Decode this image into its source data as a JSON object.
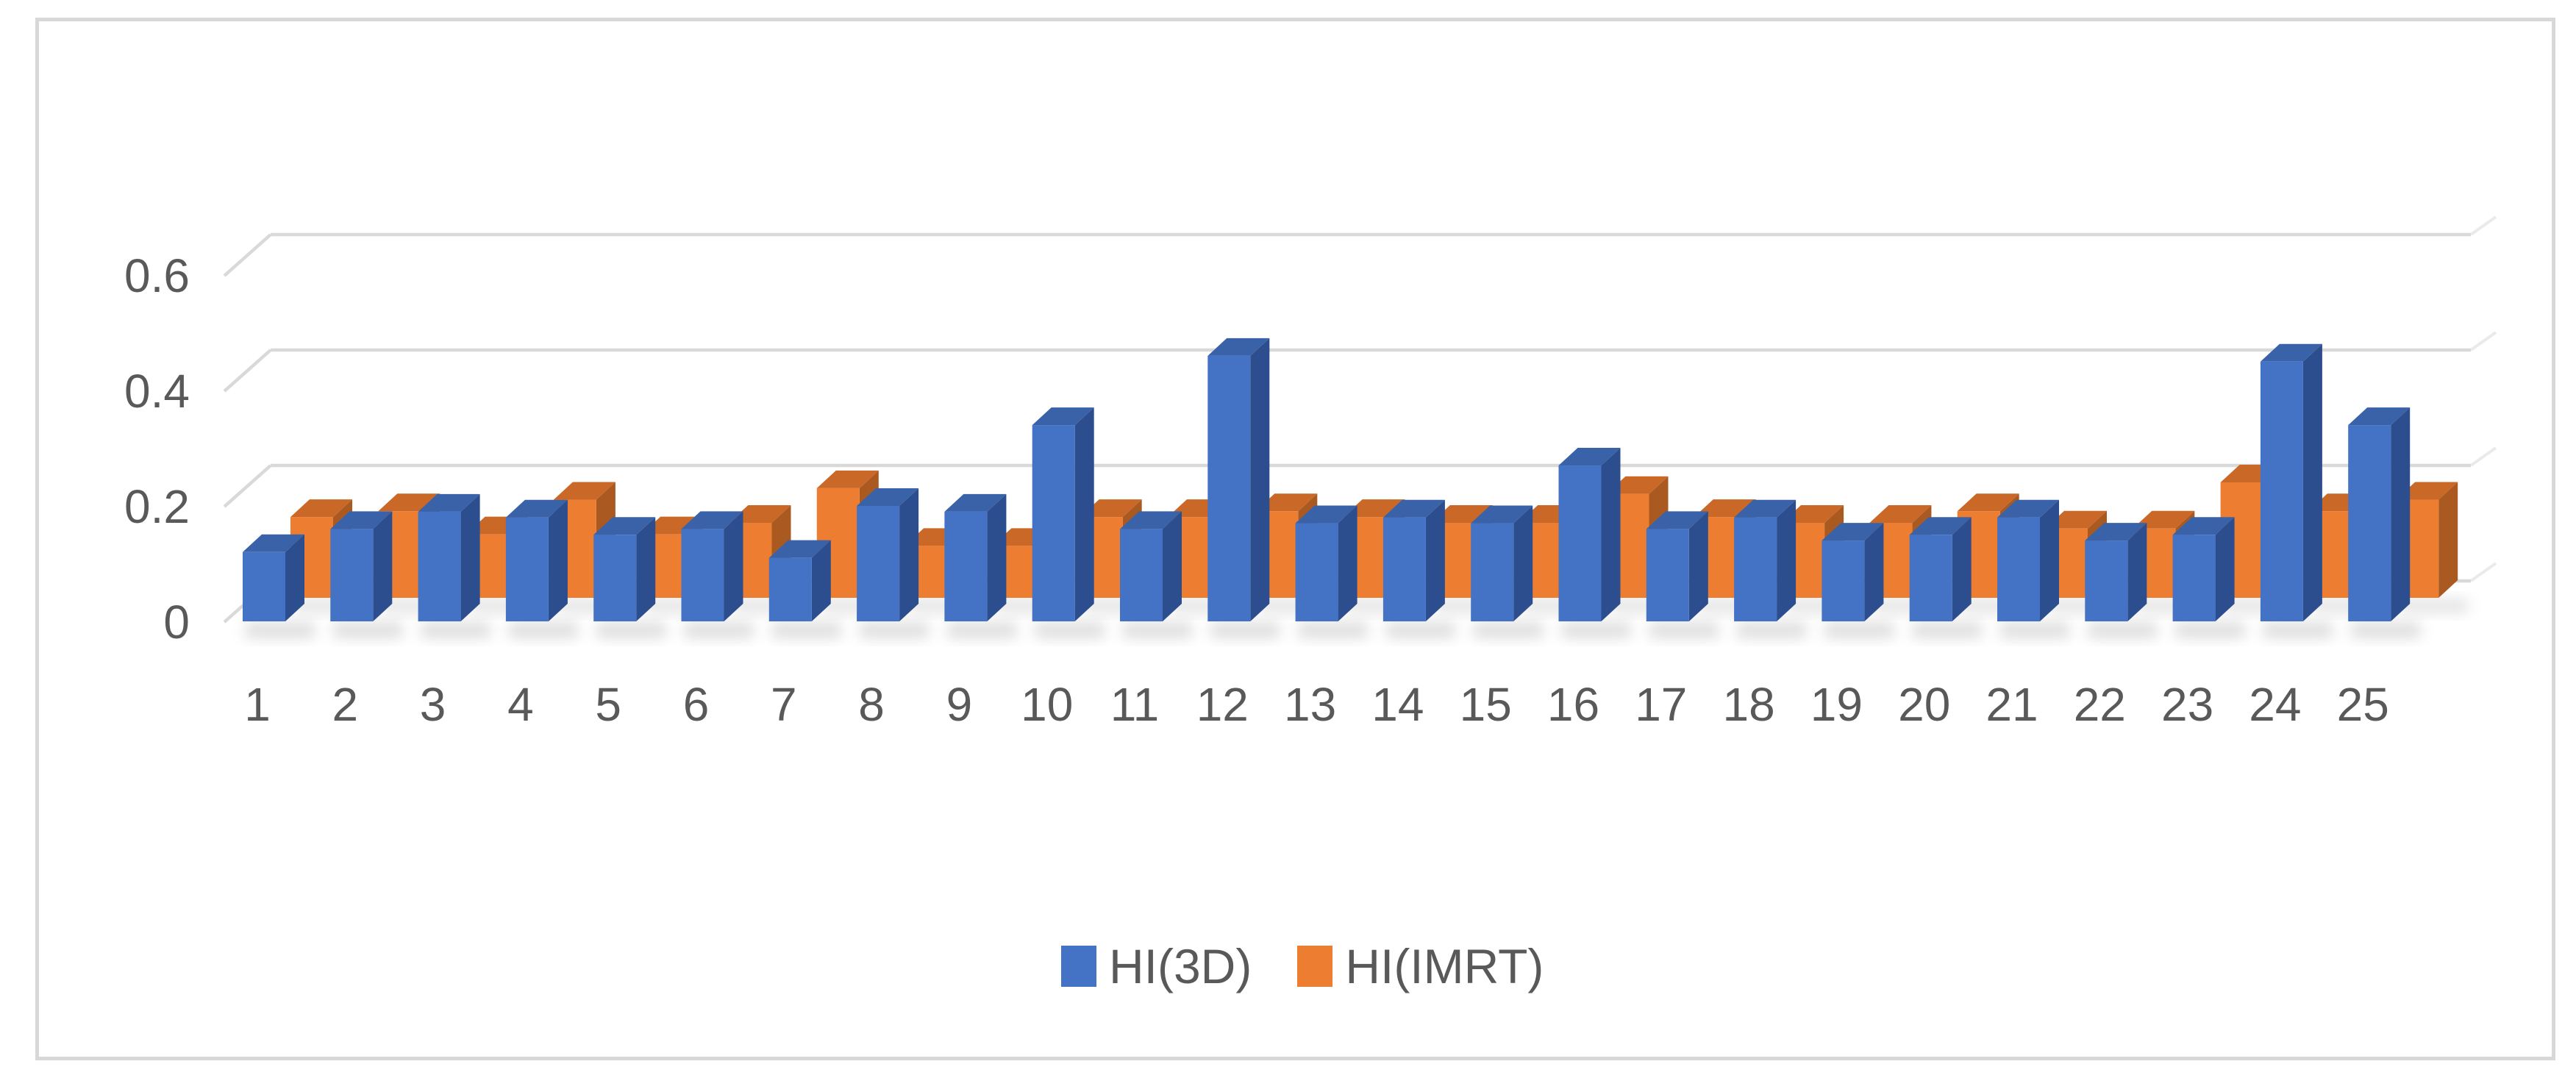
{
  "chart_data": {
    "type": "bar",
    "subtype": "3d_clustered_column",
    "title": "",
    "xlabel": "",
    "ylabel": "",
    "categories": [
      "1",
      "2",
      "3",
      "4",
      "5",
      "6",
      "7",
      "8",
      "9",
      "10",
      "11",
      "12",
      "13",
      "14",
      "15",
      "16",
      "17",
      "18",
      "19",
      "20",
      "21",
      "22",
      "23",
      "24",
      "25"
    ],
    "series": [
      {
        "name": "HI(3D)",
        "values": [
          0.12,
          0.16,
          0.19,
          0.18,
          0.15,
          0.16,
          0.11,
          0.2,
          0.19,
          0.34,
          0.16,
          0.46,
          0.17,
          0.18,
          0.17,
          0.27,
          0.16,
          0.18,
          0.14,
          0.15,
          0.18,
          0.14,
          0.15,
          0.45,
          0.34
        ],
        "colors": {
          "front": "#4472c4",
          "side": "#2c4d8e",
          "top": "#3a62a8"
        }
      },
      {
        "name": "HI(IMRT)",
        "values": [
          0.14,
          0.15,
          0.11,
          0.17,
          0.11,
          0.13,
          0.19,
          0.09,
          0.09,
          0.14,
          0.14,
          0.15,
          0.14,
          0.13,
          0.13,
          0.18,
          0.14,
          0.13,
          0.13,
          0.15,
          0.12,
          0.12,
          0.2,
          0.15,
          0.17
        ],
        "colors": {
          "front": "#ed7d31",
          "side": "#aa5a21",
          "top": "#c96827"
        }
      }
    ],
    "y_axis": {
      "ticks": [
        0,
        0.2,
        0.4,
        0.6
      ],
      "tick_labels": [
        "0",
        "0.2",
        "0.4",
        "0.6"
      ],
      "range_shown": [
        0,
        0.7
      ]
    },
    "grid": true,
    "legend_position": "bottom-center",
    "styles": {
      "axis_text_color": "#595959",
      "gridline_color": "#d9d9d9",
      "frame_border_color": "#d8d8d8",
      "background": "#ffffff"
    }
  }
}
